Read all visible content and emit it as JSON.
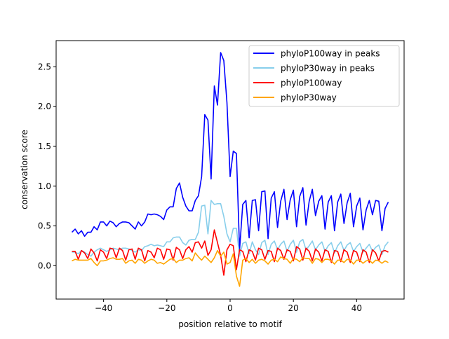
{
  "chart_data": {
    "type": "line",
    "title": "",
    "xlabel": "position relative to motif",
    "ylabel": "conservation score",
    "xlim": [
      -55,
      55
    ],
    "ylim": [
      -0.42,
      2.83
    ],
    "xticks": [
      -40,
      -20,
      0,
      20,
      40
    ],
    "xtick_labels": [
      "−40",
      "−20",
      "0",
      "20",
      "40"
    ],
    "yticks": [
      0.0,
      0.5,
      1.0,
      1.5,
      2.0,
      2.5
    ],
    "ytick_labels": [
      "0.0",
      "0.5",
      "1.0",
      "1.5",
      "2.0",
      "2.5"
    ],
    "grid": false,
    "legend_placement": "top-right",
    "x_start": -50,
    "x_step": 1,
    "series": [
      {
        "name": "phyloP100way in peaks",
        "color": "#0000ff",
        "values": [
          0.42,
          0.46,
          0.4,
          0.44,
          0.37,
          0.42,
          0.42,
          0.49,
          0.45,
          0.55,
          0.55,
          0.5,
          0.56,
          0.54,
          0.49,
          0.53,
          0.55,
          0.55,
          0.54,
          0.5,
          0.46,
          0.55,
          0.5,
          0.55,
          0.65,
          0.64,
          0.65,
          0.64,
          0.62,
          0.58,
          0.7,
          0.74,
          0.74,
          0.97,
          1.04,
          0.86,
          0.75,
          0.69,
          0.69,
          0.82,
          0.88,
          1.12,
          1.9,
          1.83,
          1.09,
          2.26,
          2.02,
          2.68,
          2.58,
          2.05,
          1.12,
          1.44,
          1.41,
          0.2,
          0.77,
          0.82,
          0.35,
          0.82,
          0.83,
          0.44,
          0.93,
          0.94,
          0.34,
          0.85,
          0.93,
          0.48,
          0.81,
          0.96,
          0.58,
          0.83,
          0.95,
          0.49,
          0.87,
          0.98,
          0.51,
          0.81,
          0.96,
          0.63,
          0.81,
          0.88,
          0.46,
          0.8,
          0.88,
          0.44,
          0.8,
          0.9,
          0.53,
          0.79,
          0.91,
          0.49,
          0.75,
          0.85,
          0.45,
          0.7,
          0.82,
          0.64,
          0.82,
          0.81,
          0.44,
          0.72,
          0.8
        ]
      },
      {
        "name": "phyloP30way in peaks",
        "color": "#87ceeb",
        "values": [
          0.17,
          0.17,
          0.15,
          0.19,
          0.17,
          0.14,
          0.12,
          0.17,
          0.2,
          0.22,
          0.2,
          0.18,
          0.2,
          0.22,
          0.21,
          0.2,
          0.22,
          0.22,
          0.21,
          0.19,
          0.17,
          0.2,
          0.19,
          0.24,
          0.25,
          0.27,
          0.25,
          0.26,
          0.25,
          0.24,
          0.3,
          0.3,
          0.35,
          0.36,
          0.36,
          0.29,
          0.26,
          0.32,
          0.33,
          0.33,
          0.42,
          0.75,
          0.76,
          0.4,
          0.82,
          0.77,
          0.78,
          0.78,
          0.62,
          0.4,
          0.3,
          0.47,
          0.47,
          0.12,
          0.28,
          0.3,
          0.15,
          0.3,
          0.2,
          0.14,
          0.29,
          0.32,
          0.14,
          0.27,
          0.31,
          0.2,
          0.27,
          0.31,
          0.18,
          0.27,
          0.32,
          0.17,
          0.3,
          0.33,
          0.2,
          0.25,
          0.31,
          0.2,
          0.26,
          0.3,
          0.18,
          0.25,
          0.29,
          0.16,
          0.25,
          0.3,
          0.19,
          0.26,
          0.29,
          0.18,
          0.24,
          0.28,
          0.17,
          0.22,
          0.27,
          0.18,
          0.23,
          0.26,
          0.14,
          0.25,
          0.3
        ]
      },
      {
        "name": "phyloP100way",
        "color": "#ff0000",
        "values": [
          0.18,
          0.18,
          0.08,
          0.19,
          0.16,
          0.09,
          0.21,
          0.16,
          0.06,
          0.2,
          0.17,
          0.09,
          0.22,
          0.21,
          0.1,
          0.22,
          0.19,
          0.07,
          0.2,
          0.21,
          0.08,
          0.22,
          0.2,
          0.06,
          0.19,
          0.17,
          0.1,
          0.22,
          0.2,
          0.08,
          0.21,
          0.2,
          0.07,
          0.23,
          0.2,
          0.09,
          0.2,
          0.24,
          0.17,
          0.29,
          0.3,
          0.22,
          0.31,
          0.13,
          0.2,
          0.45,
          0.29,
          0.13,
          -0.12,
          0.2,
          0.27,
          0.25,
          -0.05,
          0.2,
          0.18,
          0.05,
          0.2,
          0.18,
          0.07,
          0.22,
          0.2,
          0.08,
          0.19,
          0.18,
          0.05,
          0.22,
          0.19,
          0.08,
          0.2,
          0.18,
          0.06,
          0.24,
          0.21,
          0.07,
          0.22,
          0.18,
          0.06,
          0.21,
          0.17,
          0.06,
          0.2,
          0.18,
          0.04,
          0.19,
          0.18,
          0.05,
          0.2,
          0.17,
          0.04,
          0.19,
          0.17,
          0.05,
          0.2,
          0.17,
          0.04,
          0.2,
          0.16,
          0.06,
          0.18,
          0.19,
          0.17
        ]
      },
      {
        "name": "phyloP30way",
        "color": "#ffa500",
        "values": [
          0.06,
          0.08,
          0.07,
          0.07,
          0.07,
          0.07,
          0.09,
          0.04,
          0.0,
          0.06,
          0.06,
          0.07,
          0.09,
          0.1,
          0.08,
          0.08,
          0.09,
          0.03,
          0.06,
          0.07,
          0.03,
          0.08,
          0.07,
          0.03,
          0.06,
          0.08,
          0.07,
          0.03,
          0.04,
          0.02,
          0.05,
          0.08,
          0.09,
          0.04,
          0.07,
          0.07,
          0.09,
          0.1,
          0.06,
          0.16,
          0.11,
          0.07,
          0.12,
          0.08,
          0.04,
          0.1,
          0.19,
          0.12,
          0.17,
          0.02,
          0.04,
          0.15,
          -0.13,
          -0.26,
          0.07,
          0.09,
          0.04,
          0.08,
          0.03,
          0.07,
          0.08,
          0.06,
          0.02,
          0.07,
          0.08,
          0.05,
          0.11,
          0.09,
          0.08,
          0.03,
          0.09,
          0.08,
          0.05,
          0.1,
          0.09,
          0.09,
          0.03,
          0.09,
          0.08,
          0.04,
          0.08,
          0.08,
          0.06,
          0.02,
          0.07,
          0.07,
          0.04,
          0.08,
          0.07,
          0.02,
          0.07,
          0.07,
          0.03,
          0.06,
          0.07,
          0.03,
          0.07,
          0.06,
          0.03,
          0.06,
          0.04
        ]
      }
    ]
  }
}
